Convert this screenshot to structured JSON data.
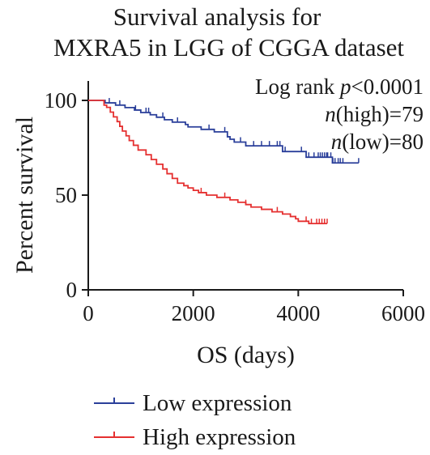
{
  "chart_data": {
    "type": "line",
    "subtype": "kaplan-meier",
    "title_lines": [
      "Survival analysis for",
      "MXRA5 in LGG of CGGA dataset"
    ],
    "xlabel": "OS (days)",
    "ylabel": "Percent survival",
    "xlim": [
      0,
      6000
    ],
    "ylim": [
      0,
      100
    ],
    "xticks": [
      "0",
      "2000",
      "4000",
      "6000"
    ],
    "yticks": [
      "0",
      "50",
      "100"
    ],
    "grid": false,
    "legend_position": "bottom",
    "annotations": {
      "logrank_prefix": "Log rank ",
      "logrank_p": "p",
      "logrank_value": "<0.0001",
      "n_symbol": "n",
      "n_high": "(high)=79",
      "n_low": "(low)=80"
    },
    "series": [
      {
        "name": "Low expression",
        "color": "#2a3f9a",
        "points": [
          [
            0,
            100
          ],
          [
            300,
            100
          ],
          [
            320,
            98.7
          ],
          [
            520,
            97.5
          ],
          [
            700,
            96.2
          ],
          [
            880,
            94.9
          ],
          [
            1000,
            93.6
          ],
          [
            1180,
            92.4
          ],
          [
            1300,
            91.1
          ],
          [
            1450,
            89.8
          ],
          [
            1600,
            88.5
          ],
          [
            1850,
            87.3
          ],
          [
            1900,
            86.0
          ],
          [
            2150,
            84.7
          ],
          [
            2400,
            83.4
          ],
          [
            2650,
            82.1
          ],
          [
            2650,
            80.8
          ],
          [
            2700,
            79.5
          ],
          [
            2780,
            78.0
          ],
          [
            2900,
            78.0
          ],
          [
            3000,
            76.0
          ],
          [
            3700,
            76.0
          ],
          [
            3700,
            73.0
          ],
          [
            4000,
            73.0
          ],
          [
            4150,
            70.0
          ],
          [
            4650,
            70.0
          ],
          [
            4650,
            67.0
          ],
          [
            5150,
            67.0
          ]
        ],
        "censor_x": [
          400,
          600,
          900,
          1100,
          1150,
          1420,
          1700,
          2300,
          2600,
          2900,
          3150,
          3300,
          3450,
          3600,
          3650,
          3750,
          4060,
          4200,
          4300,
          4380,
          4420,
          4460,
          4500,
          4540,
          4560,
          4620,
          4660,
          4700,
          4760,
          4800,
          4850,
          5150
        ]
      },
      {
        "name": "High expression",
        "color": "#e53030",
        "points": [
          [
            0,
            100
          ],
          [
            280,
            100
          ],
          [
            300,
            97.5
          ],
          [
            350,
            96.3
          ],
          [
            420,
            93.8
          ],
          [
            480,
            91.3
          ],
          [
            550,
            88.8
          ],
          [
            600,
            86.3
          ],
          [
            650,
            83.8
          ],
          [
            720,
            81.3
          ],
          [
            780,
            78.8
          ],
          [
            860,
            76.3
          ],
          [
            950,
            73.8
          ],
          [
            1100,
            71.3
          ],
          [
            1200,
            68.8
          ],
          [
            1300,
            66.3
          ],
          [
            1420,
            63.8
          ],
          [
            1500,
            61.3
          ],
          [
            1600,
            58.8
          ],
          [
            1700,
            56.3
          ],
          [
            1820,
            55.0
          ],
          [
            1900,
            53.8
          ],
          [
            2000,
            52.5
          ],
          [
            2100,
            51.3
          ],
          [
            2250,
            50.0
          ],
          [
            2450,
            48.8
          ],
          [
            2700,
            47.5
          ],
          [
            2850,
            46.2
          ],
          [
            3000,
            45.0
          ],
          [
            3100,
            43.7
          ],
          [
            3300,
            42.5
          ],
          [
            3500,
            41.2
          ],
          [
            3700,
            40.0
          ],
          [
            3850,
            38.7
          ],
          [
            3950,
            37.5
          ],
          [
            4000,
            36.2
          ],
          [
            4200,
            35.0
          ],
          [
            4550,
            35.0
          ]
        ],
        "censor_x": [
          1600,
          2150,
          2600,
          3000,
          3600,
          4150,
          4250,
          4350,
          4400,
          4450,
          4500,
          4550
        ]
      }
    ]
  }
}
